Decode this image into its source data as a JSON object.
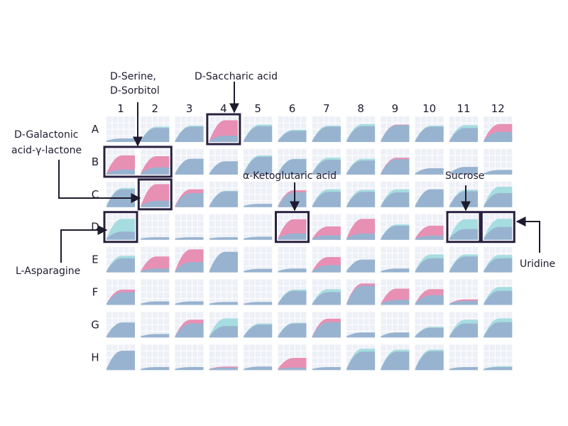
{
  "chart_data": {
    "type": "area",
    "columns": [
      "1",
      "2",
      "3",
      "4",
      "5",
      "6",
      "7",
      "8",
      "9",
      "10",
      "11",
      "12"
    ],
    "rows": [
      "A",
      "B",
      "C",
      "D",
      "E",
      "F",
      "G",
      "H"
    ],
    "colors": {
      "cell_bg": "#eef0f7",
      "grid_line": "#ffffff",
      "condition_2": "#e88fb4",
      "condition_1": "#a6dde0",
      "overlap": "#98b3d0",
      "highlight_box": "#2a2140",
      "text": "#1e1b2e"
    },
    "annotations": {
      "d_serine": {
        "line1": "D-Serine,",
        "line2": "D-Sorbitol"
      },
      "d_saccharic": {
        "text": "D-Saccharic acid"
      },
      "d_galactonic": {
        "line1": "D-Galactonic",
        "line2": "acid-γ-lactone"
      },
      "ketoglutaric": {
        "text": "α-Ketoglutaric acid"
      },
      "sucrose": {
        "text": "Sucrose"
      },
      "asparagine": {
        "text": "L-Asparagine"
      },
      "uridine": {
        "text": "Uridine"
      }
    },
    "highlighted_wells": [
      "A4",
      "B1",
      "B2",
      "C2",
      "D1",
      "D6",
      "D11",
      "D12"
    ],
    "wells": {
      "A": [
        [
          0.14,
          0.14,
          "f"
        ],
        [
          0.55,
          0.6,
          "c"
        ],
        [
          0.6,
          0.64,
          "c"
        ],
        [
          0.25,
          0.85,
          "m"
        ],
        [
          0.68,
          0.62,
          "c"
        ],
        [
          0.48,
          0.44,
          "c"
        ],
        [
          0.6,
          0.64,
          "c"
        ],
        [
          0.62,
          0.7,
          "c"
        ],
        [
          0.68,
          0.66,
          "m"
        ],
        [
          0.6,
          0.64,
          "c"
        ],
        [
          0.55,
          0.66,
          "c"
        ],
        [
          0.4,
          0.7,
          "m"
        ]
      ],
      "B": [
        [
          0.2,
          0.75,
          "m"
        ],
        [
          0.28,
          0.72,
          "m"
        ],
        [
          0.62,
          0.62,
          "c"
        ],
        [
          0.52,
          0.52,
          "c"
        ],
        [
          0.75,
          0.7,
          "c"
        ],
        [
          0.62,
          0.6,
          "c"
        ],
        [
          0.58,
          0.66,
          "c"
        ],
        [
          0.55,
          0.62,
          "c"
        ],
        [
          0.6,
          0.66,
          "m"
        ],
        [
          0.25,
          0.25,
          "f"
        ],
        [
          0.3,
          0.3,
          "f"
        ],
        [
          0.18,
          0.18,
          "f"
        ]
      ],
      "C": [
        [
          0.7,
          0.75,
          "c"
        ],
        [
          0.25,
          0.9,
          "m"
        ],
        [
          0.55,
          0.7,
          "m"
        ],
        [
          0.62,
          0.64,
          "c"
        ],
        [
          0.13,
          0.13,
          "f"
        ],
        [
          0.58,
          0.66,
          "m"
        ],
        [
          0.6,
          0.7,
          "c"
        ],
        [
          0.6,
          0.68,
          "c"
        ],
        [
          0.58,
          0.7,
          "c"
        ],
        [
          0.7,
          0.7,
          "c"
        ],
        [
          0.62,
          0.68,
          "c"
        ],
        [
          0.55,
          0.8,
          "c"
        ]
      ],
      "D": [
        [
          0.32,
          0.82,
          "c"
        ],
        [
          0.1,
          0.1,
          "f"
        ],
        [
          0.1,
          0.1,
          "f"
        ],
        [
          0.1,
          0.1,
          "f"
        ],
        [
          0.12,
          0.12,
          "f"
        ],
        [
          0.25,
          0.8,
          "m"
        ],
        [
          0.18,
          0.52,
          "m"
        ],
        [
          0.25,
          0.82,
          "m"
        ],
        [
          0.55,
          0.6,
          "c"
        ],
        [
          0.16,
          0.55,
          "m"
        ],
        [
          0.42,
          0.8,
          "c"
        ],
        [
          0.5,
          0.82,
          "c"
        ]
      ],
      "E": [
        [
          0.55,
          0.65,
          "c"
        ],
        [
          0.15,
          0.62,
          "m"
        ],
        [
          0.4,
          0.9,
          "m"
        ],
        [
          0.8,
          0.8,
          "c"
        ],
        [
          0.14,
          0.14,
          "f"
        ],
        [
          0.15,
          0.15,
          "f"
        ],
        [
          0.28,
          0.6,
          "m"
        ],
        [
          0.5,
          0.5,
          "c"
        ],
        [
          0.15,
          0.15,
          "f"
        ],
        [
          0.55,
          0.7,
          "c"
        ],
        [
          0.62,
          0.7,
          "c"
        ],
        [
          0.55,
          0.68,
          "c"
        ]
      ],
      "F": [
        [
          0.5,
          0.6,
          "m"
        ],
        [
          0.14,
          0.14,
          "f"
        ],
        [
          0.14,
          0.14,
          "f"
        ],
        [
          0.12,
          0.12,
          "f"
        ],
        [
          0.12,
          0.12,
          "f"
        ],
        [
          0.55,
          0.6,
          "c"
        ],
        [
          0.5,
          0.62,
          "c"
        ],
        [
          0.75,
          0.84,
          "m"
        ],
        [
          0.2,
          0.64,
          "m"
        ],
        [
          0.38,
          0.62,
          "m"
        ],
        [
          0.16,
          0.22,
          "m"
        ],
        [
          0.55,
          0.7,
          "c"
        ]
      ],
      "G": [
        [
          0.58,
          0.6,
          "c"
        ],
        [
          0.14,
          0.14,
          "f"
        ],
        [
          0.55,
          0.7,
          "m"
        ],
        [
          0.45,
          0.75,
          "c"
        ],
        [
          0.5,
          0.55,
          "c"
        ],
        [
          0.55,
          0.58,
          "c"
        ],
        [
          0.6,
          0.74,
          "m"
        ],
        [
          0.2,
          0.2,
          "f"
        ],
        [
          0.2,
          0.2,
          "f"
        ],
        [
          0.38,
          0.42,
          "c"
        ],
        [
          0.55,
          0.7,
          "c"
        ],
        [
          0.6,
          0.75,
          "c"
        ]
      ],
      "H": [
        [
          0.76,
          0.76,
          "f"
        ],
        [
          0.12,
          0.12,
          "f"
        ],
        [
          0.12,
          0.12,
          "f"
        ],
        [
          0.1,
          0.14,
          "m"
        ],
        [
          0.14,
          0.14,
          "f"
        ],
        [
          0.1,
          0.48,
          "m"
        ],
        [
          0.12,
          0.12,
          "f"
        ],
        [
          0.72,
          0.84,
          "c"
        ],
        [
          0.72,
          0.8,
          "c"
        ],
        [
          0.74,
          0.8,
          "c"
        ],
        [
          0.12,
          0.12,
          "f"
        ],
        [
          0.12,
          0.15,
          "c"
        ]
      ]
    }
  }
}
